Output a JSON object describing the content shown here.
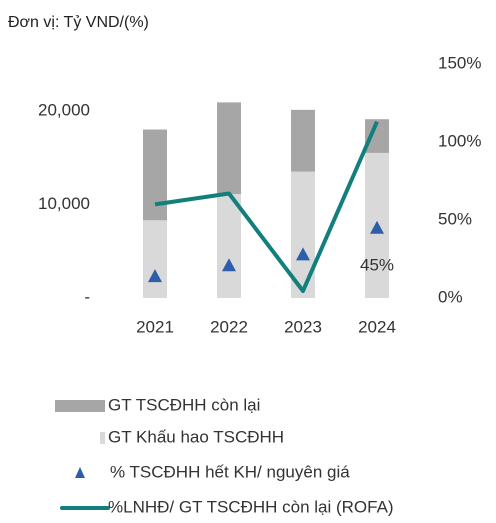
{
  "chart_data": {
    "type": "bar_line",
    "subtitle": "Đơn vị: Tỷ VND/(%)",
    "categories": [
      "2021",
      "2022",
      "2023",
      "2024"
    ],
    "series": [
      {
        "name": "GT TSCĐHH còn lại",
        "type": "bar",
        "color": "#a6a6a6",
        "values": [
          9700,
          9800,
          6600,
          3600
        ]
      },
      {
        "name": "GT Khấu hao TSCĐHH",
        "type": "bar",
        "color": "#d9d9d9",
        "values": [
          8300,
          11100,
          13500,
          15500
        ]
      },
      {
        "name": "% TSCĐHH hết KH/ nguyên giá",
        "type": "marker",
        "axis": "y2",
        "color": "#2e5eaa",
        "values": [
          14,
          21,
          28,
          45
        ],
        "value_labels": [
          null,
          null,
          null,
          "45%"
        ]
      },
      {
        "name": "%LNHĐ/ GT TSCĐHH còn lại (ROFA)",
        "type": "line",
        "axis": "y2",
        "color": "#11807d",
        "values": [
          60,
          67,
          4.5,
          113
        ]
      }
    ],
    "ylim": [
      0,
      25000
    ],
    "yticks": [
      {
        "value": 0,
        "label": "-"
      },
      {
        "value": 10000,
        "label": "10,000"
      },
      {
        "value": 20000,
        "label": "20,000"
      }
    ],
    "y2lim": [
      0,
      150
    ],
    "y2ticks": [
      {
        "value": 0,
        "label": "0%"
      },
      {
        "value": 50,
        "label": "50%"
      },
      {
        "value": 100,
        "label": "100%"
      },
      {
        "value": 150,
        "label": "150%"
      }
    ],
    "grid": false
  }
}
